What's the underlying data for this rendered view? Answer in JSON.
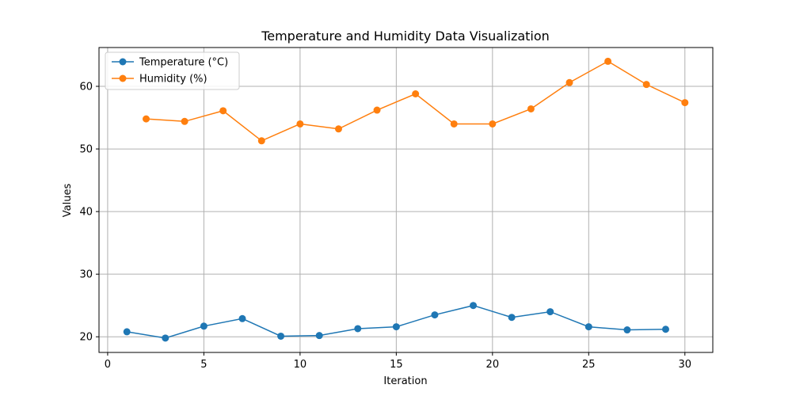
{
  "chart_data": {
    "type": "line",
    "title": "Temperature and Humidity Data Visualization",
    "xlabel": "Iteration",
    "ylabel": "Values",
    "xlim": [
      -0.45,
      31.45
    ],
    "ylim": [
      17.5,
      66.2
    ],
    "xticks": [
      0,
      5,
      10,
      15,
      20,
      25,
      30
    ],
    "yticks": [
      20,
      30,
      40,
      50,
      60
    ],
    "grid": true,
    "legend_position": "top-left",
    "series": [
      {
        "name": "Temperature (°C)",
        "color": "#1f77b4",
        "marker": "circle",
        "x": [
          1,
          3,
          5,
          7,
          9,
          11,
          13,
          15,
          17,
          19,
          21,
          23,
          25,
          27,
          29
        ],
        "y": [
          20.8,
          19.8,
          21.7,
          22.9,
          20.1,
          20.2,
          21.3,
          21.6,
          23.5,
          25.0,
          23.1,
          24.0,
          21.6,
          21.1,
          21.2
        ]
      },
      {
        "name": "Humidity (%)",
        "color": "#ff7f0e",
        "marker": "circle",
        "x": [
          2,
          4,
          6,
          8,
          10,
          12,
          14,
          16,
          18,
          20,
          22,
          24,
          26,
          28,
          30
        ],
        "y": [
          54.8,
          54.4,
          56.1,
          51.3,
          54.0,
          53.2,
          56.2,
          58.8,
          54.0,
          54.0,
          56.4,
          60.6,
          64.0,
          60.3,
          57.4
        ]
      }
    ]
  }
}
